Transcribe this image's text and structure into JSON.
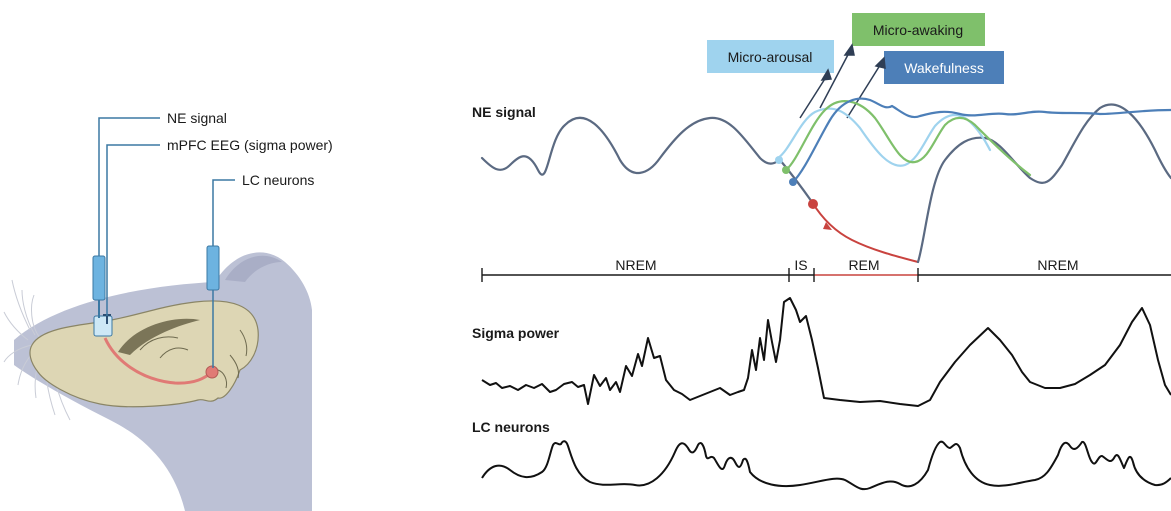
{
  "rat_panel": {
    "labels": [
      "NE signal",
      "mPFC EEG (sigma power)",
      "LC neurons"
    ]
  },
  "traces": {
    "ne_signal": "NE signal",
    "sigma_power": "Sigma power",
    "lc_neurons": "LC neurons"
  },
  "stages": [
    "NREM",
    "IS",
    "REM",
    "NREM"
  ],
  "events": {
    "micro_arousal": "Micro-arousal",
    "micro_awaking": "Micro-awaking",
    "wakefulness": "Wakefulness"
  },
  "colors": {
    "micro_arousal": "#9fd3ee",
    "micro_awaking": "#7fc06b",
    "wakefulness": "#4d7fb8",
    "ne_trace": "#5b6a82",
    "rem_trace": "#c9433f",
    "head": "#bcc1d5",
    "brain": "#ddd6b4",
    "pathway": "#e07a75",
    "electrode": "#6db3e0"
  }
}
